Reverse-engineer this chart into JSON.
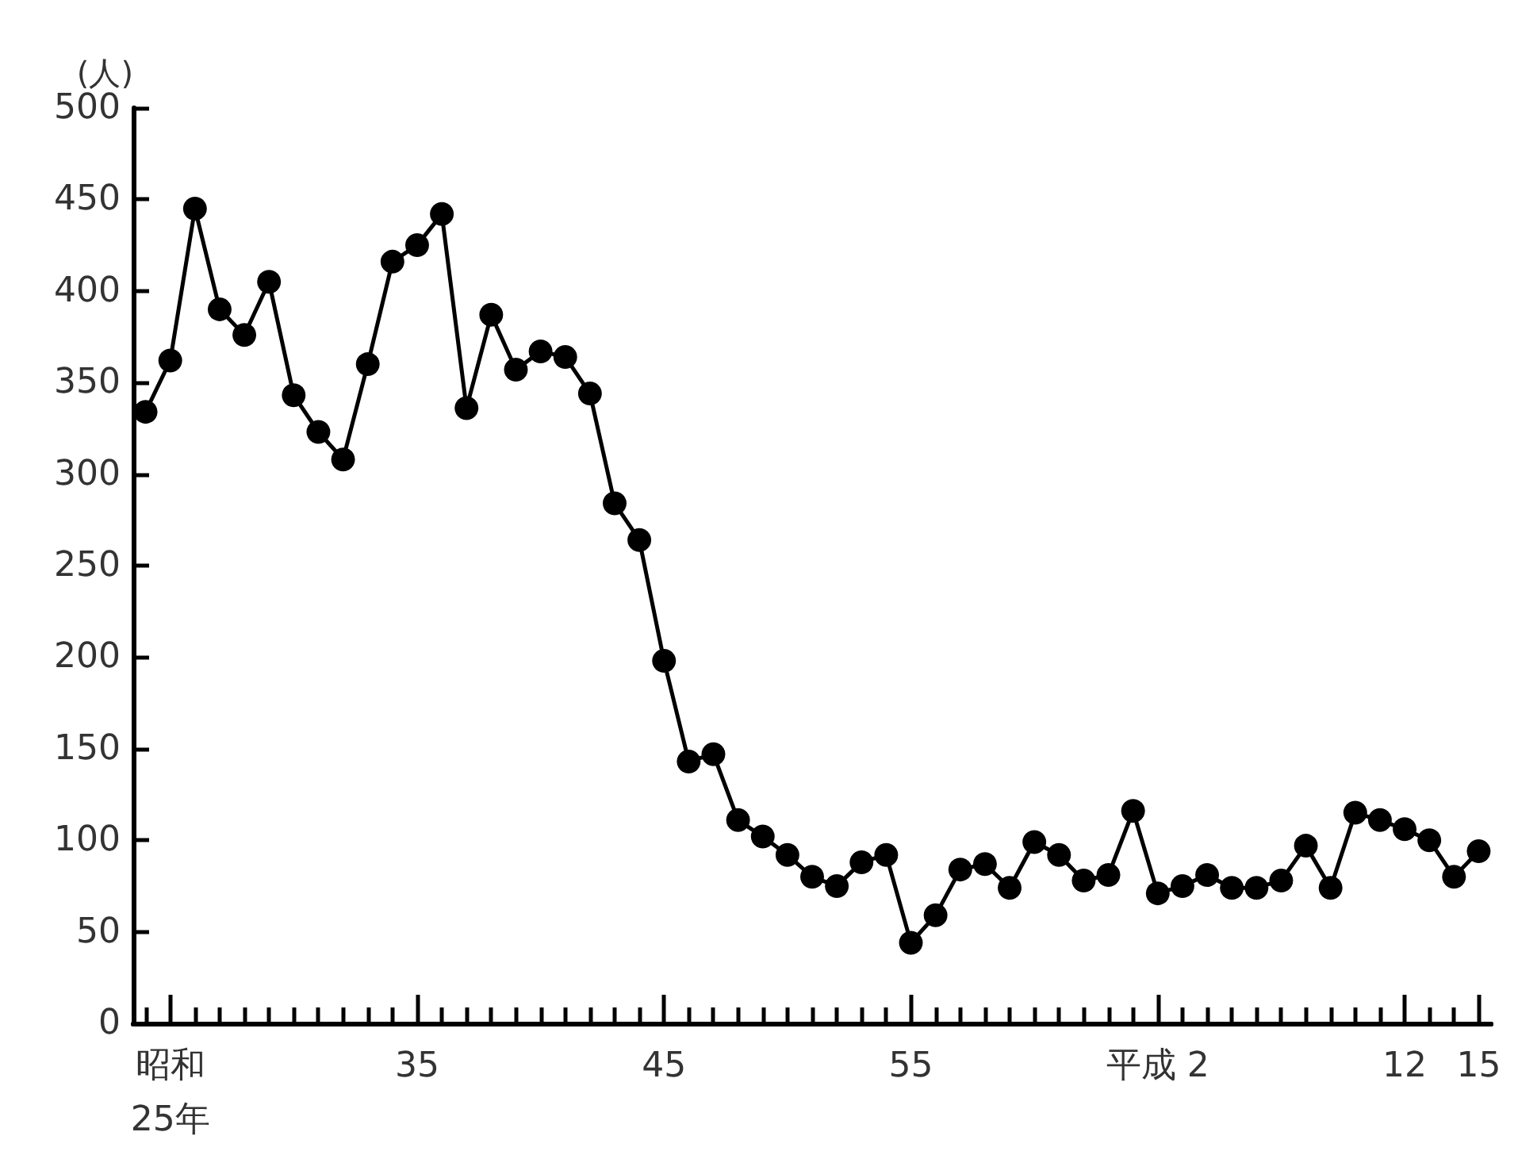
{
  "chart_data": {
    "type": "line",
    "ylabel": "(人)",
    "categories": [
      null,
      "昭和\n25年",
      null,
      null,
      null,
      null,
      null,
      null,
      null,
      null,
      null,
      "35",
      null,
      null,
      null,
      null,
      null,
      null,
      null,
      null,
      null,
      "45",
      null,
      null,
      null,
      null,
      null,
      null,
      null,
      null,
      null,
      "55",
      null,
      null,
      null,
      null,
      null,
      null,
      null,
      null,
      null,
      "平成 2",
      null,
      null,
      null,
      null,
      null,
      null,
      null,
      null,
      null,
      "12",
      null,
      null,
      "15"
    ],
    "series": [
      {
        "color": "#000000",
        "values": [
          334,
          362,
          445,
          390,
          376,
          405,
          343,
          323,
          308,
          360,
          416,
          425,
          442,
          336,
          387,
          357,
          367,
          364,
          344,
          284,
          264,
          198,
          143,
          147,
          111,
          102,
          92,
          80,
          75,
          88,
          92,
          44,
          59,
          84,
          87,
          74,
          99,
          92,
          78,
          81,
          116,
          71,
          75,
          81,
          74,
          74,
          78,
          97,
          74,
          115,
          111,
          106,
          100,
          80,
          94
        ]
      }
    ],
    "ylim": [
      0,
      500
    ],
    "yticks": [
      0,
      50,
      100,
      150,
      200,
      250,
      300,
      350,
      400,
      450,
      500
    ],
    "grid": false,
    "marker": "circle",
    "line_style": "solid"
  }
}
